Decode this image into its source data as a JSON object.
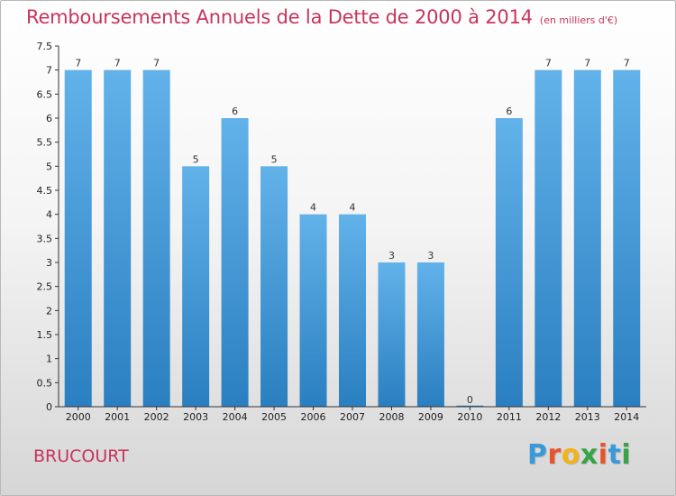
{
  "header": {
    "title": "Remboursements Annuels de la Dette de 2000 à 2014",
    "unit": "(en milliers d'€)"
  },
  "footer": {
    "place": "BRUCOURT",
    "logo": {
      "letters": [
        "P",
        "r",
        "o",
        "x",
        "i",
        "t",
        "i"
      ],
      "colors": [
        "#3a9ad9",
        "#e8532a",
        "#f2b21a",
        "#36a345",
        "#e8532a",
        "#3a9ad9",
        "#36a345"
      ]
    }
  },
  "chart_data": {
    "type": "bar",
    "title": "Remboursements Annuels de la Dette de 2000 à 2014",
    "categories": [
      "2000",
      "2001",
      "2002",
      "2003",
      "2004",
      "2005",
      "2006",
      "2007",
      "2008",
      "2009",
      "2010",
      "2011",
      "2012",
      "2013",
      "2014"
    ],
    "values": [
      7,
      7,
      7,
      5,
      6,
      5,
      4,
      4,
      3,
      3,
      0,
      6,
      7,
      7,
      7
    ],
    "data_labels": [
      "7",
      "7",
      "7",
      "5",
      "6",
      "5",
      "4",
      "4",
      "3",
      "3",
      "0",
      "6",
      "7",
      "7",
      "7"
    ],
    "ylim": [
      0,
      7.5
    ],
    "yticks": [
      "0",
      "0.5",
      "1",
      "1.5",
      "2",
      "2.5",
      "3",
      "3.5",
      "4",
      "4.5",
      "5",
      "5.5",
      "6",
      "6.5",
      "7",
      "7.5"
    ],
    "grid": false,
    "colors": {
      "bar_top": "#62b2ea",
      "bar_bottom": "#2a7fc0",
      "axis": "#333333"
    }
  }
}
